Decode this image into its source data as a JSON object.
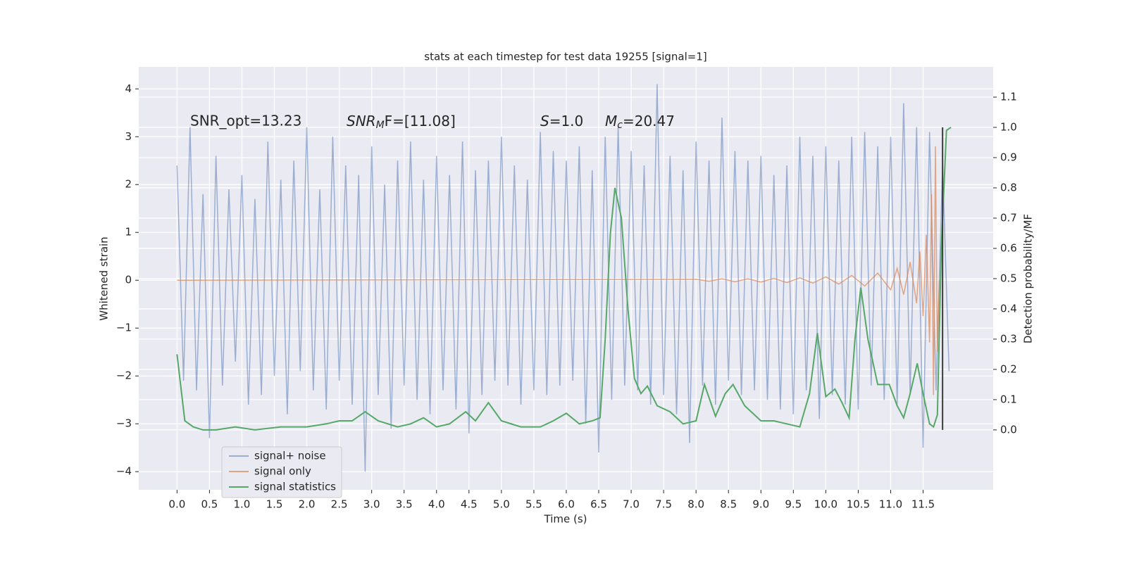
{
  "chart_data": {
    "type": "line",
    "title": "stats at each timestep for test data 19255 [signal=1]",
    "xlabel": "Time (s)",
    "ylabel": "Whitened strain",
    "y2label": "Detection probability/MF",
    "xlim": [
      -0.59,
      12.58
    ],
    "ylim": [
      -4.38,
      4.46
    ],
    "y2lim": [
      -0.198,
      1.2
    ],
    "xticks": [
      {
        "value": 0,
        "label": "0.0"
      },
      0.5,
      {
        "value": 1,
        "label": "1.0"
      },
      1.5,
      {
        "value": 2,
        "label": "2.0"
      },
      2.5,
      {
        "value": 3,
        "label": "3.0"
      },
      3.5,
      {
        "value": 4,
        "label": "4.0"
      },
      4.5,
      {
        "value": 5,
        "label": "5.0"
      },
      5.5,
      {
        "value": 6,
        "label": "6.0"
      },
      6.5,
      {
        "value": 7,
        "label": "7.0"
      },
      7.5,
      {
        "value": 8,
        "label": "8.0"
      },
      8.5,
      {
        "value": 9,
        "label": "9.0"
      },
      9.5,
      {
        "value": 10,
        "label": "10.0"
      },
      10.5,
      {
        "value": 11,
        "label": "11.0"
      },
      11.5
    ],
    "yticks": [
      {
        "value": -4,
        "label": "−4"
      },
      {
        "value": -3,
        "label": "−3"
      },
      {
        "value": -2,
        "label": "−2"
      },
      {
        "value": -1,
        "label": "−1"
      },
      0,
      1,
      2,
      3,
      4
    ],
    "y2ticks": [
      {
        "value": 0,
        "label": "0.0"
      },
      0.1,
      0.2,
      0.3,
      0.4,
      0.5,
      0.6,
      0.7,
      0.8,
      0.9,
      {
        "value": 1,
        "label": "1.0"
      },
      1.1
    ],
    "grid": true,
    "background": "#eaeaf2",
    "legend_loc": "lower left",
    "series": [
      {
        "name": "signal+ noise",
        "color": "#4c72b0",
        "alpha": 0.5,
        "x": [
          0.0,
          0.1,
          0.2,
          0.3,
          0.4,
          0.5,
          0.6,
          0.7,
          0.8,
          0.9,
          1.0,
          1.1,
          1.2,
          1.3,
          1.4,
          1.5,
          1.6,
          1.7,
          1.8,
          1.9,
          2.0,
          2.1,
          2.2,
          2.3,
          2.4,
          2.5,
          2.6,
          2.7,
          2.8,
          2.9,
          3.0,
          3.1,
          3.2,
          3.3,
          3.4,
          3.5,
          3.6,
          3.7,
          3.8,
          3.9,
          4.0,
          4.1,
          4.2,
          4.3,
          4.4,
          4.5,
          4.6,
          4.7,
          4.8,
          4.9,
          5.0,
          5.1,
          5.2,
          5.3,
          5.4,
          5.5,
          5.6,
          5.7,
          5.8,
          5.9,
          6.0,
          6.1,
          6.2,
          6.3,
          6.4,
          6.5,
          6.6,
          6.7,
          6.8,
          6.9,
          7.0,
          7.1,
          7.2,
          7.3,
          7.4,
          7.5,
          7.6,
          7.7,
          7.8,
          7.9,
          8.0,
          8.1,
          8.2,
          8.3,
          8.4,
          8.5,
          8.6,
          8.7,
          8.8,
          8.9,
          9.0,
          9.1,
          9.2,
          9.3,
          9.4,
          9.5,
          9.6,
          9.7,
          9.8,
          9.9,
          10.0,
          10.1,
          10.2,
          10.3,
          10.4,
          10.5,
          10.6,
          10.7,
          10.8,
          10.9,
          11.0,
          11.1,
          11.2,
          11.3,
          11.4,
          11.5,
          11.6,
          11.7,
          11.8,
          11.9
        ],
        "values": [
          2.4,
          -2.1,
          3.2,
          -2.3,
          1.8,
          -3.3,
          2.6,
          -2.2,
          1.9,
          -1.7,
          2.2,
          -2.6,
          1.7,
          -2.4,
          2.9,
          -2.0,
          2.1,
          -2.8,
          2.5,
          -1.9,
          3.2,
          -2.3,
          1.9,
          -2.7,
          3.0,
          -2.1,
          2.4,
          -2.6,
          2.2,
          -4.0,
          2.8,
          -2.4,
          2.0,
          -3.1,
          2.5,
          -2.2,
          2.9,
          -2.5,
          2.1,
          -2.8,
          2.6,
          -2.3,
          2.2,
          -2.7,
          2.9,
          -3.2,
          2.3,
          -2.4,
          2.5,
          -2.1,
          3.0,
          -2.2,
          2.4,
          -2.6,
          2.1,
          -2.3,
          3.1,
          -2.4,
          2.7,
          -2.2,
          2.5,
          -2.1,
          2.8,
          -3.0,
          2.3,
          -3.6,
          3.0,
          -2.5,
          3.2,
          -2.2,
          2.7,
          -2.3,
          2.4,
          -2.6,
          4.1,
          -2.4,
          2.6,
          -2.8,
          2.3,
          -3.4,
          2.9,
          -2.2,
          2.5,
          -2.6,
          3.4,
          -2.1,
          2.7,
          -2.4,
          2.5,
          -2.3,
          2.6,
          -2.5,
          2.2,
          -2.7,
          2.4,
          -2.8,
          3.0,
          -2.3,
          2.6,
          -2.9,
          2.8,
          -2.4,
          2.5,
          -2.6,
          3.0,
          -2.7,
          3.1,
          -2.2,
          2.8,
          -2.5,
          3.0,
          -2.6,
          3.7,
          -2.4,
          3.2,
          -3.5,
          3.1,
          -2.3,
          2.4,
          -1.9
        ]
      },
      {
        "name": "signal only",
        "color": "#dd8452",
        "alpha": 0.7,
        "x": [
          0.0,
          8.0,
          8.2,
          8.4,
          8.6,
          8.8,
          9.0,
          9.2,
          9.4,
          9.6,
          9.8,
          10.0,
          10.2,
          10.4,
          10.6,
          10.8,
          11.0,
          11.1,
          11.2,
          11.3,
          11.4,
          11.45,
          11.5,
          11.55,
          11.6,
          11.63,
          11.66,
          11.69,
          11.72,
          11.75
        ],
        "values": [
          0,
          0.02,
          -0.02,
          0.03,
          -0.03,
          0.03,
          -0.04,
          0.04,
          -0.05,
          0.05,
          -0.06,
          0.07,
          -0.08,
          0.1,
          -0.12,
          0.15,
          -0.2,
          0.25,
          -0.3,
          0.38,
          -0.48,
          0.6,
          -0.75,
          0.95,
          -1.3,
          1.8,
          -2.4,
          2.8,
          -1.5,
          0
        ]
      },
      {
        "name": "signal statistics",
        "color": "#55a868",
        "alpha": 1,
        "axis": "y2",
        "x": [
          0.0,
          0.12,
          0.25,
          0.4,
          0.6,
          0.9,
          1.2,
          1.6,
          2.0,
          2.3,
          2.5,
          2.7,
          2.9,
          3.1,
          3.4,
          3.6,
          3.8,
          4.0,
          4.2,
          4.45,
          4.6,
          4.8,
          5.0,
          5.3,
          5.6,
          5.8,
          6.0,
          6.2,
          6.4,
          6.52,
          6.6,
          6.68,
          6.75,
          6.85,
          6.95,
          7.05,
          7.15,
          7.25,
          7.4,
          7.6,
          7.8,
          8.0,
          8.13,
          8.3,
          8.45,
          8.57,
          8.75,
          9.0,
          9.2,
          9.4,
          9.6,
          9.75,
          9.87,
          10.0,
          10.14,
          10.25,
          10.36,
          10.45,
          10.54,
          10.65,
          10.8,
          10.98,
          11.1,
          11.2,
          11.3,
          11.41,
          11.5,
          11.6,
          11.66,
          11.72,
          11.78,
          11.86,
          11.93
        ],
        "values": [
          0.25,
          0.03,
          0.01,
          0,
          0,
          0.01,
          0,
          0.01,
          0.01,
          0.02,
          0.03,
          0.03,
          0.06,
          0.03,
          0.01,
          0.02,
          0.04,
          0.01,
          0.02,
          0.06,
          0.03,
          0.09,
          0.03,
          0.01,
          0.01,
          0.03,
          0.055,
          0.02,
          0.03,
          0.04,
          0.3,
          0.65,
          0.8,
          0.7,
          0.4,
          0.17,
          0.12,
          0.145,
          0.08,
          0.06,
          0.02,
          0.03,
          0.15,
          0.045,
          0.12,
          0.15,
          0.08,
          0.03,
          0.03,
          0.02,
          0.01,
          0.12,
          0.32,
          0.11,
          0.135,
          0.09,
          0.04,
          0.3,
          0.47,
          0.3,
          0.15,
          0.15,
          0.08,
          0.04,
          0.12,
          0.22,
          0.12,
          0.02,
          0.01,
          0.05,
          0.6,
          0.99,
          1.0
        ]
      }
    ],
    "vlines": [
      {
        "x": 11.8,
        "ymin": 0,
        "ymax": 1,
        "color": "#3a3a3a",
        "axis": "y2"
      }
    ],
    "annotations": [
      {
        "text": "SNR_opt=13.23"
      },
      {
        "parts": [
          "SNR",
          "M",
          "F=[11.08]"
        ]
      },
      {
        "parts": [
          "S",
          "=1.0"
        ]
      },
      {
        "parts": [
          "M",
          "c",
          "=20.47"
        ]
      }
    ]
  }
}
